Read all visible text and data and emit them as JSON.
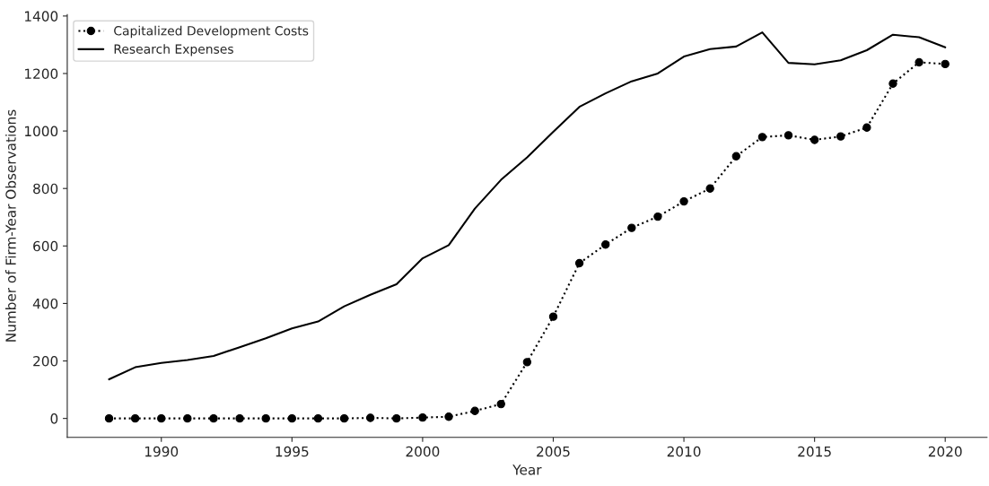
{
  "chart_data": {
    "type": "line",
    "xlabel": "Year",
    "ylabel": "Number of Firm-Year Observations",
    "x": [
      1988,
      1989,
      1990,
      1991,
      1992,
      1993,
      1994,
      1995,
      1996,
      1997,
      1998,
      1999,
      2000,
      2001,
      2002,
      2003,
      2004,
      2005,
      2006,
      2007,
      2008,
      2009,
      2010,
      2011,
      2012,
      2013,
      2014,
      2015,
      2016,
      2017,
      2018,
      2019,
      2020
    ],
    "series": [
      {
        "name": "Capitalized Development Costs",
        "color": "#000000",
        "marker": "circle",
        "line_style": "dotted",
        "values": [
          0,
          0,
          0,
          0,
          0,
          0,
          0,
          0,
          0,
          0,
          2,
          0,
          3,
          6,
          26,
          50,
          196,
          354,
          540,
          605,
          663,
          702,
          755,
          800,
          912,
          979,
          985,
          969,
          981,
          1012,
          1165,
          1239,
          1233
        ]
      },
      {
        "name": "Research Expenses",
        "color": "#000000",
        "marker": "none",
        "line_style": "solid",
        "values": [
          136,
          178,
          193,
          203,
          217,
          248,
          279,
          313,
          337,
          390,
          430,
          467,
          557,
          603,
          730,
          830,
          908,
          997,
          1084,
          1131,
          1173,
          1200,
          1259,
          1285,
          1294,
          1343,
          1237,
          1232,
          1246,
          1281,
          1335,
          1326,
          1291
        ]
      }
    ],
    "xlim": [
      1986.4,
      2021.6
    ],
    "xticks": [
      1990,
      1995,
      2000,
      2005,
      2010,
      2015,
      2020
    ],
    "ylim": [
      -66,
      1405
    ],
    "yticks": [
      0,
      200,
      400,
      600,
      800,
      1000,
      1200,
      1400
    ],
    "grid": false,
    "legend": "top left"
  }
}
